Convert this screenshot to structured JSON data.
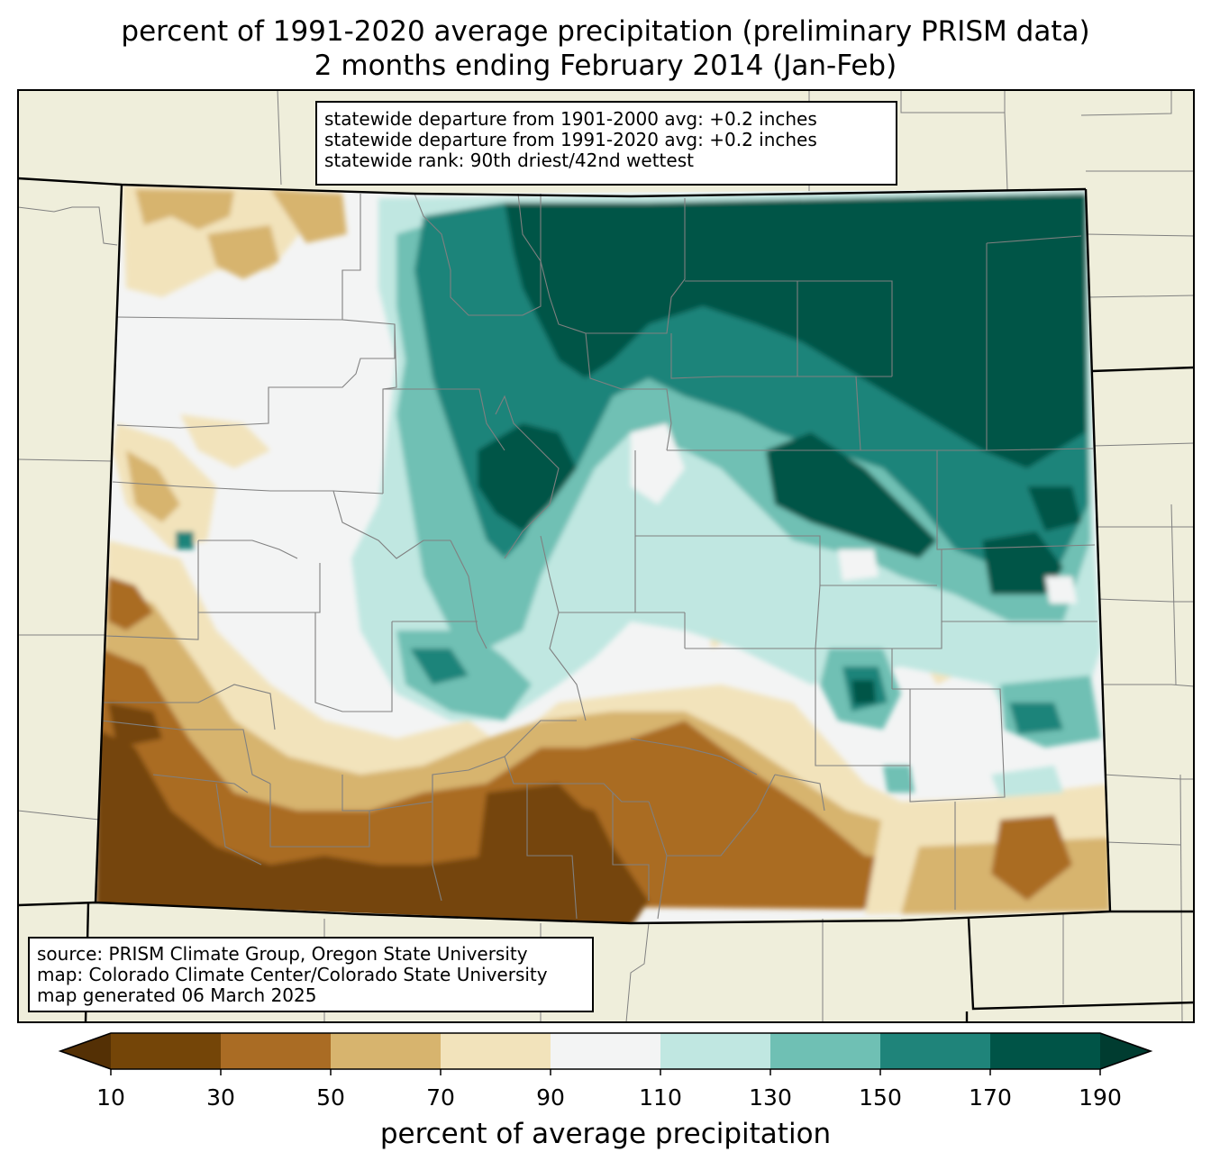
{
  "title": {
    "line1": "percent of 1991-2020 average precipitation (preliminary PRISM data)",
    "line2": "2 months ending February 2014 (Jan-Feb)"
  },
  "stats": {
    "line1": "statewide departure from 1901-2000 avg: +0.2 inches",
    "line2": "statewide departure from 1991-2020 avg: +0.2 inches",
    "line3": "statewide rank: 90th driest/42nd wettest"
  },
  "source": {
    "line1": "source: PRISM Climate Group, Oregon State University",
    "line2": "map: Colorado Climate Center/Colorado State University",
    "line3": "map generated 06 March 2025"
  },
  "colorbar": {
    "label": "percent of average precipitation",
    "ticks": [
      "10",
      "30",
      "50",
      "70",
      "90",
      "110",
      "130",
      "150",
      "170",
      "190"
    ],
    "colors": [
      "#543005",
      "#8c510a",
      "#bf812d",
      "#dfc27d",
      "#f6e8c3",
      "#f5f5f5",
      "#c7eae5",
      "#80cdc1",
      "#35978f",
      "#01665e",
      "#003c30"
    ],
    "bin_colors": [
      "#744508",
      "#aa6c24",
      "#d7b46e",
      "#f2e3bb",
      "#f3f4f4",
      "#c0e7e1",
      "#6fc0b4",
      "#1f847a",
      "#005447"
    ]
  },
  "colors": {
    "background_land": "#efeedb",
    "state_border": "#000000",
    "county_border": "#808080"
  }
}
